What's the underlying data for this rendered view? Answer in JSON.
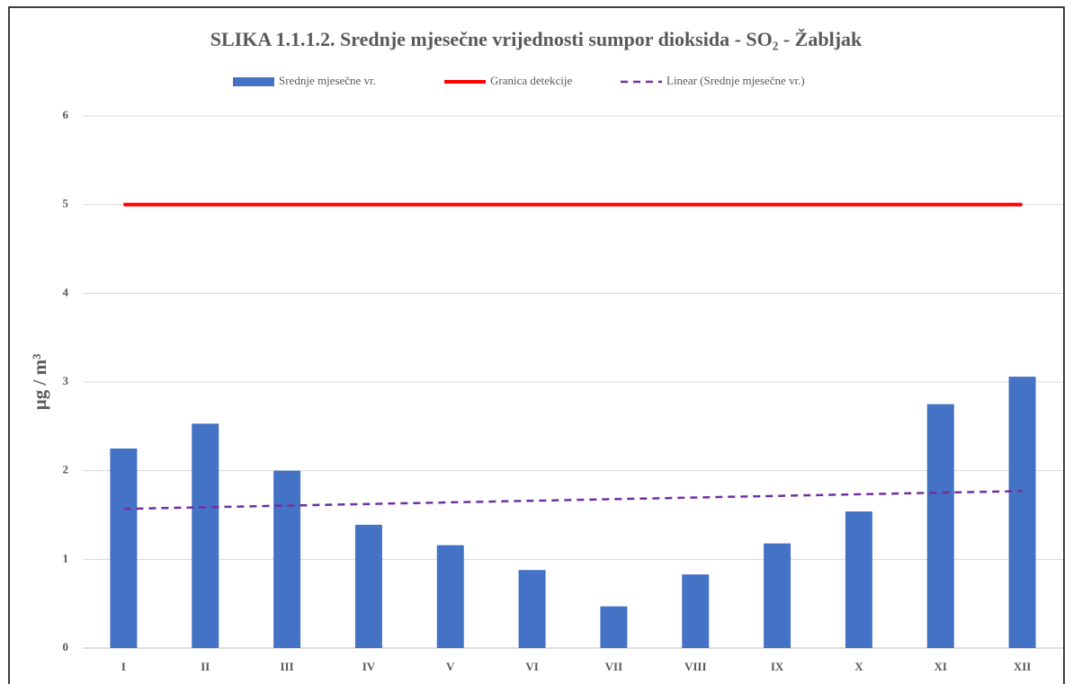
{
  "chart_data": {
    "type": "bar",
    "title": "SLIKA 1.1.1.2. Srednje mjesečne vrijednosti sumpor dioksida - SO₂ - Žabljak",
    "y_label": "µg / m³",
    "categories": [
      "I",
      "II",
      "III",
      "IV",
      "V",
      "VI",
      "VII",
      "VIII",
      "IX",
      "X",
      "XI",
      "XII"
    ],
    "series": [
      {
        "name": "Srednje mjesečne vr.",
        "type": "bar",
        "color": "#4472c4",
        "values": [
          2.25,
          2.53,
          2.0,
          1.39,
          1.16,
          0.88,
          0.47,
          0.83,
          1.18,
          1.54,
          2.75,
          3.06
        ]
      },
      {
        "name": "Granica detekcije",
        "type": "line",
        "color": "#ff0000",
        "values": [
          5,
          5,
          5,
          5,
          5,
          5,
          5,
          5,
          5,
          5,
          5,
          5
        ]
      },
      {
        "name": "Linear (Srednje mjesečne vr.)",
        "type": "trend",
        "trendline": "linear",
        "color": "#7030a0"
      }
    ],
    "ylim": [
      0,
      6
    ],
    "yticks": [
      0,
      1,
      2,
      3,
      4,
      5,
      6
    ],
    "grid": true,
    "legend": "top"
  }
}
